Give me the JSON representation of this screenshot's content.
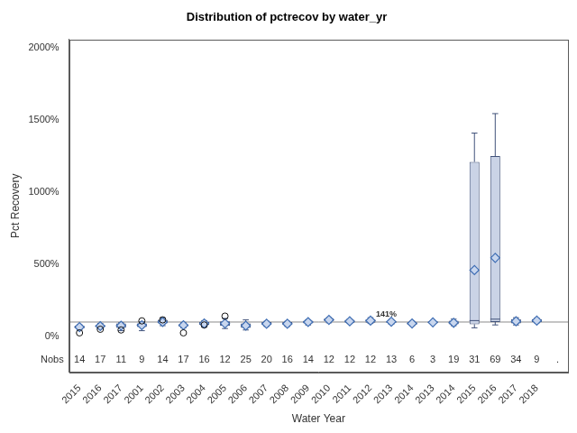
{
  "chart_data": {
    "type": "boxplot",
    "title": "Distribution of pctrecov by water_yr",
    "x_label": "Water Year",
    "y_label": "Pct Recovery",
    "categories": [
      "2015",
      "2016",
      "2017",
      "2001",
      "2002",
      "2003",
      "2004",
      "2005",
      "2006",
      "2007",
      "2008",
      "2009",
      "2010",
      "2011",
      "2012",
      "2013",
      "2014",
      "2013",
      "2014",
      "2015",
      "2016",
      "2017",
      "2018",
      null
    ],
    "boxes": {
      "min": [
        45,
        55,
        40,
        40,
        75,
        60,
        65,
        55,
        45,
        70,
        70,
        80,
        95,
        90,
        90,
        85,
        75,
        90,
        75,
        60,
        80,
        80,
        95,
        null
      ],
      "q1": [
        55,
        65,
        60,
        65,
        90,
        70,
        80,
        75,
        60,
        80,
        80,
        90,
        105,
        95,
        95,
        95,
        80,
        90,
        85,
        85,
        100,
        90,
        100,
        null
      ],
      "median": [
        65,
        72,
        75,
        80,
        100,
        78,
        90,
        90,
        75,
        90,
        90,
        100,
        115,
        105,
        110,
        100,
        90,
        98,
        95,
        110,
        120,
        105,
        110,
        null
      ],
      "q3": [
        75,
        80,
        90,
        90,
        115,
        85,
        100,
        105,
        90,
        100,
        100,
        110,
        125,
        115,
        120,
        110,
        100,
        105,
        110,
        1210,
        1250,
        120,
        120,
        null
      ],
      "max": [
        80,
        90,
        95,
        100,
        130,
        95,
        110,
        125,
        115,
        105,
        105,
        115,
        130,
        120,
        130,
        115,
        105,
        105,
        120,
        1410,
        1545,
        130,
        125,
        null
      ],
      "mean": [
        65,
        72,
        75,
        78,
        100,
        78,
        90,
        90,
        75,
        88,
        88,
        100,
        115,
        105,
        110,
        102,
        90,
        98,
        95,
        460,
        545,
        105,
        110,
        null
      ],
      "outliers": [
        [
          25
        ],
        [],
        [],
        [],
        [
          50
        ],
        [
          45,
          108
        ],
        [],
        [],
        [],
        [
          115
        ],
        [
          25
        ],
        [],
        [],
        [
          80
        ],
        [
          141
        ],
        [],
        [],
        [],
        [],
        [],
        [],
        [],
        [],
        []
      ]
    },
    "nobs_label": "Nobs",
    "nobs": [
      14,
      17,
      11,
      9,
      14,
      17,
      16,
      12,
      25,
      20,
      16,
      14,
      12,
      12,
      12,
      13,
      6,
      3,
      19,
      31,
      69,
      34,
      9,
      "."
    ],
    "reference_line": 100,
    "annotations": [
      {
        "category_index": 14,
        "y": 141,
        "text": "141%"
      }
    ],
    "color": "#cad3e6",
    "ylim": [
      -250,
      2060
    ],
    "yticks": [
      {
        "value": 0,
        "label": "0%"
      },
      {
        "value": 500,
        "label": "500%"
      },
      {
        "value": 1000,
        "label": "1000%"
      },
      {
        "value": 1500,
        "label": "1500%"
      },
      {
        "value": 2000,
        "label": "2000%"
      }
    ],
    "grid": false
  }
}
